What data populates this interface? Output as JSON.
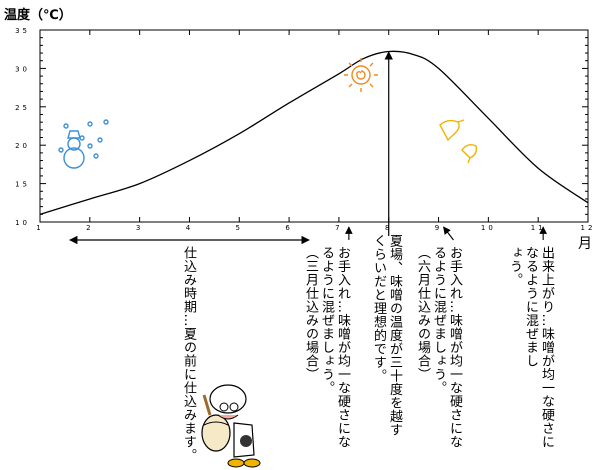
{
  "chart_data": {
    "type": "line",
    "title": "",
    "ylabel": "温度（℃）",
    "xlabel": "月",
    "xlim": [
      1,
      12
    ],
    "ylim": [
      10,
      35
    ],
    "x_ticks": [
      "1",
      "2",
      "3",
      "4",
      "5",
      "6",
      "7",
      "8",
      "9",
      "10",
      "11",
      "12"
    ],
    "y_ticks": [
      "10",
      "15",
      "20",
      "25",
      "30",
      "35"
    ],
    "series": [
      {
        "name": "",
        "x": [
          1,
          2,
          3,
          4,
          5,
          6,
          7,
          7.5,
          8,
          8.5,
          9,
          10,
          11,
          12
        ],
        "y": [
          11.0,
          13.0,
          15.0,
          18.0,
          21.5,
          25.5,
          29.3,
          31.3,
          32.2,
          31.8,
          30.0,
          23.5,
          17.0,
          12.5
        ]
      }
    ],
    "range_arrow": {
      "from": 1.6,
      "to": 6.4
    },
    "annotations": [
      {
        "name": "prep-period",
        "x": 3.95,
        "text": "仕込み時期…夏の前に仕込みます。"
      },
      {
        "name": "stir-1",
        "x": 7.2,
        "text": "お手入れ…味噌が均一な硬さにな\nるように混ぜましょう。\n（三月仕込みの場合）"
      },
      {
        "name": "summer",
        "x": 8.0,
        "text": "夏場、味噌の温度が三十度を越す\nくらいだと理想的です。"
      },
      {
        "name": "stir-2",
        "x": 9.2,
        "text": "お手入れ…味噌が均一な硬さにな\nるように混ぜましょう。\n（六月仕込みの場合）"
      },
      {
        "name": "finish",
        "x": 11.1,
        "text": "出来上がり…味噌が均一な硬さに\nなるように混ぜまし\nょう。"
      }
    ],
    "colors": {
      "line": "#000000",
      "snowman": "#3b8fd8",
      "sun": "#f08a1e",
      "leaf": "#f0b400"
    },
    "grid": false,
    "legend": "none"
  }
}
